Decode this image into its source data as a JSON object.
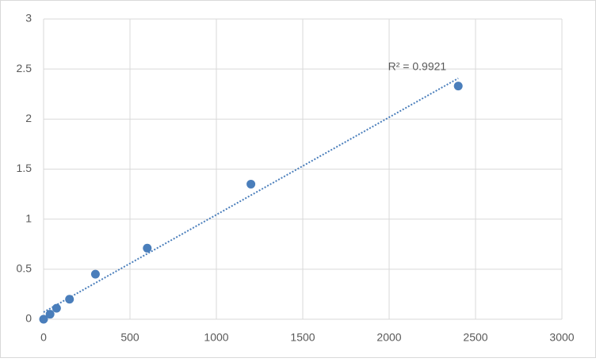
{
  "chart_data": {
    "type": "scatter",
    "x": [
      0,
      37.5,
      75,
      150,
      300,
      600,
      1200,
      2400
    ],
    "values": [
      0,
      0.05,
      0.11,
      0.2,
      0.45,
      0.71,
      1.35,
      2.33
    ],
    "color": "#4a7ebb",
    "xlim": [
      0,
      3000
    ],
    "xticks": [
      0,
      500,
      1000,
      1500,
      2000,
      2500,
      3000
    ],
    "ylim": [
      0,
      3
    ],
    "yticks": [
      0,
      0.5,
      1,
      1.5,
      2,
      2.5,
      3
    ],
    "grid": true,
    "trendline": "linear",
    "annotation": "R² = 0.9921"
  }
}
